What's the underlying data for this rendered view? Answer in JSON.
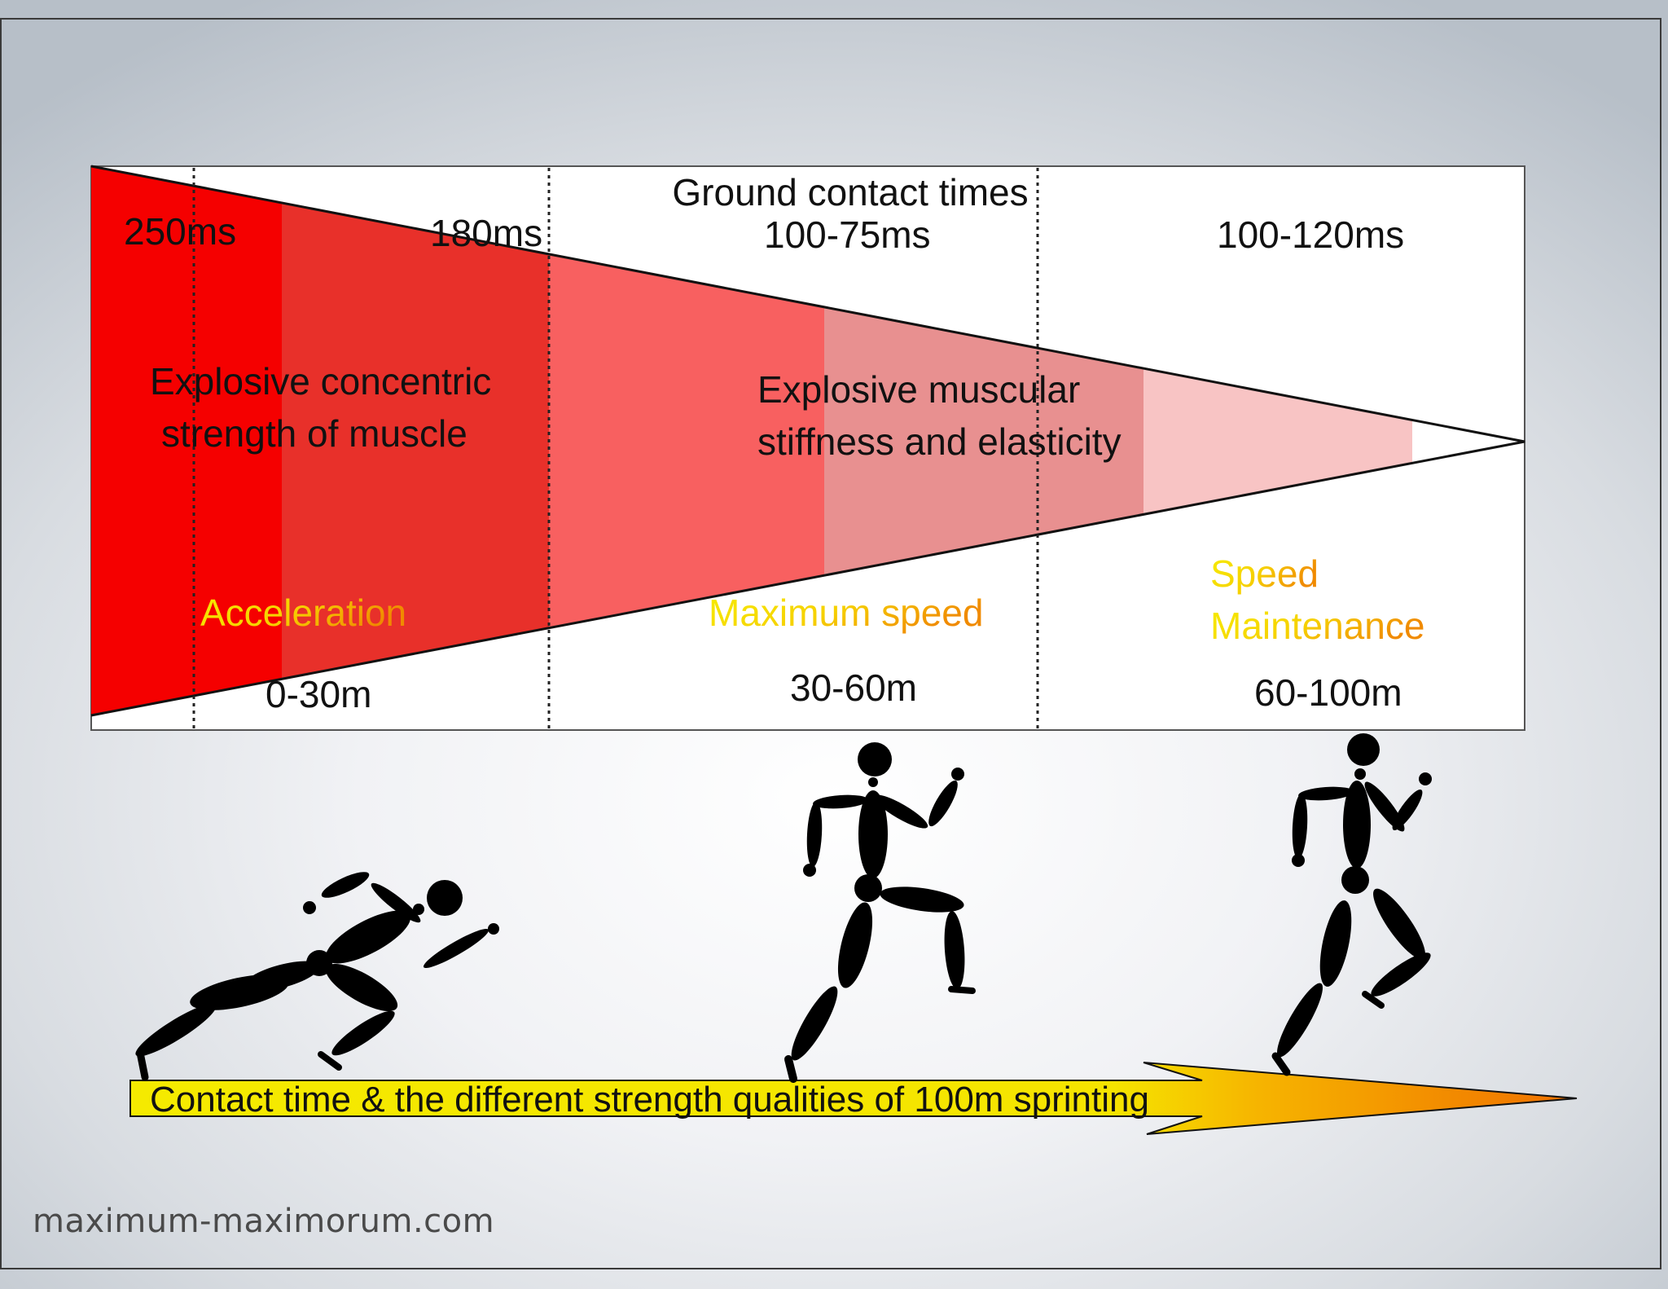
{
  "diagram": {
    "title": "Ground contact times",
    "contact_times": {
      "t1": "250ms",
      "t2": "180ms",
      "t3": "100-75ms",
      "t4": "100-120ms"
    },
    "strength_qualities": {
      "concentric_line1": "Explosive concentric",
      "concentric_line2": "strength of muscle",
      "elastic_line1": "Explosive muscular",
      "elastic_line2": "stiffness and elasticity"
    },
    "phases": {
      "acceleration": "Acceleration",
      "max_speed": "Maximum speed",
      "maintenance_line1": "Speed",
      "maintenance_line2": "Maintenance"
    },
    "distances": {
      "d1": "0-30m",
      "d2": "30-60m",
      "d3": "60-100m"
    },
    "caption": "Contact time & the different strength qualities of 100m sprinting",
    "colors": {
      "zone1": "#f50000",
      "zone2": "#e8302a",
      "zone3": "#f86060",
      "zone4": "#e89090",
      "zone5": "#f8c4c4",
      "phase_yellow": "#f4e600",
      "phase_orange": "#f08a00",
      "arrow_yellow": "#f5ea00",
      "arrow_orange": "#f07000"
    }
  },
  "footer": {
    "site": "maximum-maximorum.com"
  }
}
